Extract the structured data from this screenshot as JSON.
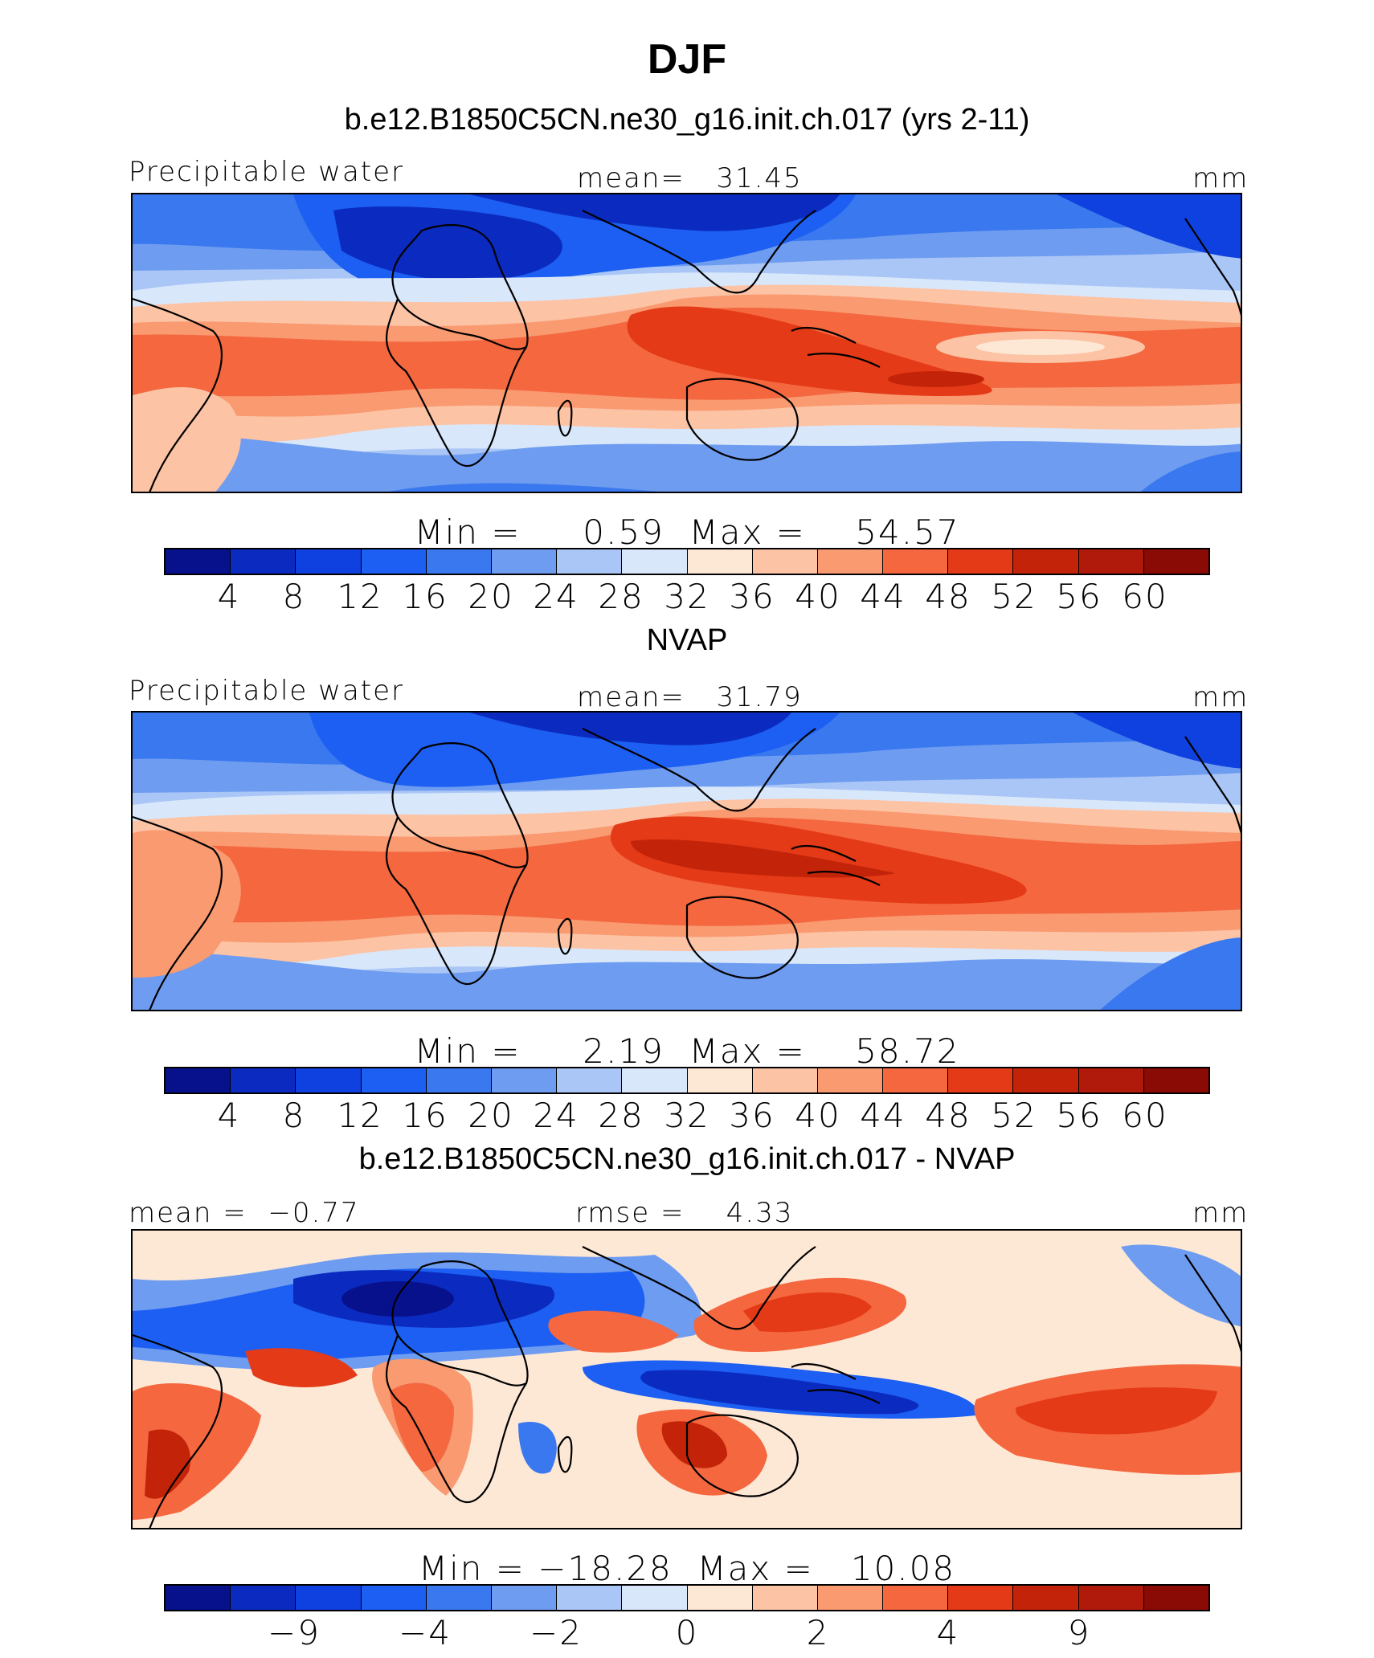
{
  "title": "DJF",
  "palette": [
    "#08118c",
    "#0b2bc0",
    "#0f40e0",
    "#1c5ff2",
    "#3a78ef",
    "#6e9cf0",
    "#a9c6f6",
    "#d9e7fb",
    "#fde8d6",
    "#fcc3a5",
    "#f99a71",
    "#f4673f",
    "#e43a17",
    "#c32409",
    "#b01a0a",
    "#8a0a05"
  ],
  "panels": [
    {
      "subtitle": "b.e12.B1850C5CN.ne30_g16.init.ch.017 (yrs 2-11)",
      "left_label": "Precipitable water",
      "center_label": "mean=   31.45",
      "units": "mm",
      "minmax": "Min =     0.59  Max =    54.57",
      "ticks": [
        "4",
        "8",
        "12",
        "16",
        "20",
        "24",
        "28",
        "32",
        "36",
        "40",
        "44",
        "48",
        "52",
        "56",
        "60"
      ]
    },
    {
      "subtitle": "NVAP",
      "left_label": "Precipitable water",
      "center_label": "mean=   31.79",
      "units": "mm",
      "minmax": "Min =     2.19  Max =    58.72",
      "ticks": [
        "4",
        "8",
        "12",
        "16",
        "20",
        "24",
        "28",
        "32",
        "36",
        "40",
        "44",
        "48",
        "52",
        "56",
        "60"
      ]
    },
    {
      "subtitle": "b.e12.B1850C5CN.ne30_g16.init.ch.017 - NVAP",
      "left_label": "mean =  −0.77",
      "center_label": "rmse =    4.33",
      "units": "mm",
      "minmax": "Min = −18.28  Max =   10.08",
      "ticks": [
        "−9",
        "−4",
        "−2",
        "0",
        "2",
        "4",
        "9"
      ]
    }
  ]
}
